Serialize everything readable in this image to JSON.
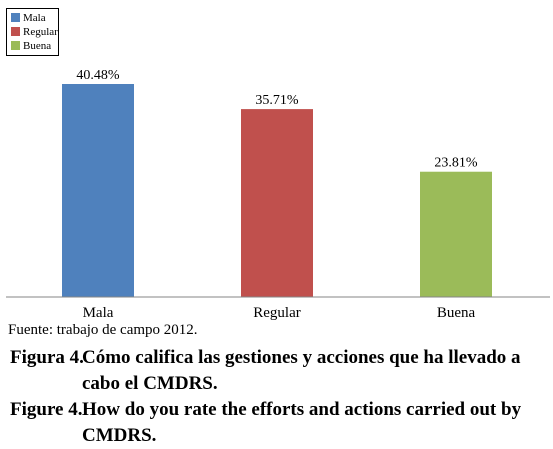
{
  "chart_data": {
    "type": "bar",
    "categories": [
      "Mala",
      "Regular",
      "Buena"
    ],
    "values": [
      40.48,
      35.71,
      23.81
    ],
    "data_labels": [
      "40.48%",
      "35.71%",
      "23.81%"
    ],
    "colors": [
      "#4f81bd",
      "#c0504d",
      "#9bbb59"
    ],
    "legend": {
      "placement": "top-left",
      "entries": [
        "Mala",
        "Regular",
        "Buena"
      ]
    },
    "ylim": [
      0,
      40.48
    ],
    "grid": false,
    "title": "",
    "xlabel": "",
    "ylabel": ""
  },
  "source": "Fuente: trabajo de campo 2012.",
  "captions": {
    "es": {
      "label": "Figura 4.",
      "text": "Cómo califica las gestiones y acciones que ha llevado a cabo el CMDRS."
    },
    "en": {
      "label": "Figure 4.",
      "text": "How do you rate the efforts and actions carried out by CMDRS."
    }
  }
}
